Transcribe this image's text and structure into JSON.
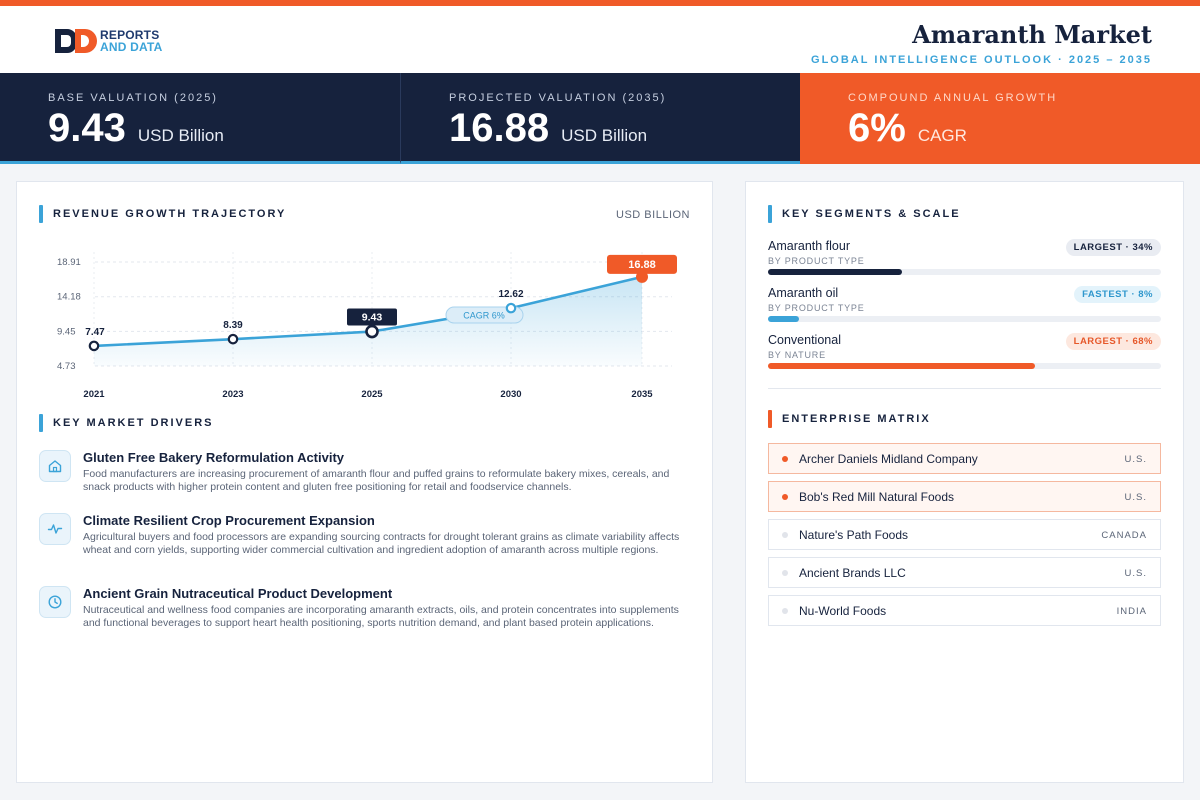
{
  "brand": {
    "logo_text_line1": "REPORTS",
    "logo_text_line2": "AND DATA"
  },
  "header": {
    "title": "Amaranth Market",
    "subtitle": "GLOBAL INTELLIGENCE OUTLOOK  ·  2025 – 2035"
  },
  "kpis": [
    {
      "label": "BASE VALUATION (2025)",
      "value": "9.43",
      "unit": "USD Billion"
    },
    {
      "label": "PROJECTED VALUATION (2035)",
      "value": "16.88",
      "unit": "USD Billion"
    },
    {
      "label": "COMPOUND ANNUAL GROWTH",
      "value": "6%",
      "unit": "CAGR"
    }
  ],
  "colors": {
    "navy": "#16223d",
    "orange": "#f05a28",
    "blue": "#3ba3d8"
  },
  "revenue": {
    "title": "REVENUE GROWTH TRAJECTORY",
    "unit": "USD BILLION",
    "cagr_label": "CAGR 6%"
  },
  "chart_data": {
    "type": "area",
    "x": [
      "2021",
      "2023",
      "2025",
      "2030",
      "2035"
    ],
    "values": [
      7.47,
      8.39,
      9.43,
      12.62,
      16.88
    ],
    "value_labels": [
      "7.47",
      "8.39",
      "9.43",
      "12.62",
      "16.88"
    ],
    "y_ticks": [
      4.73,
      9.45,
      14.18,
      18.91
    ],
    "y_tick_labels": [
      "4.73",
      "9.45",
      "14.18",
      "18.91"
    ],
    "ylim": [
      4.73,
      18.91
    ],
    "grid": true,
    "highlight": {
      "base_index": 2,
      "end_index": 4
    }
  },
  "drivers": {
    "title": "KEY MARKET DRIVERS",
    "items": [
      {
        "icon": "home-icon",
        "title": "Gluten Free Bakery Reformulation Activity",
        "desc": "Food manufacturers are increasing procurement of amaranth flour and puffed grains to reformulate bakery mixes, cereals, and snack products with higher protein content and gluten free positioning for retail and foodservice channels."
      },
      {
        "icon": "pulse-icon",
        "title": "Climate Resilient Crop Procurement Expansion",
        "desc": "Agricultural buyers and food processors are expanding sourcing contracts for drought tolerant grains as climate variability affects wheat and corn yields, supporting wider commercial cultivation and ingredient adoption of amaranth across multiple regions."
      },
      {
        "icon": "clock-icon",
        "title": "Ancient Grain Nutraceutical Product Development",
        "desc": "Nutraceutical and wellness food companies are incorporating amaranth extracts, oils, and protein concentrates into supplements and functional beverages to support heart health positioning, sports nutrition demand, and plant based protein applications."
      }
    ]
  },
  "segments": {
    "title": "KEY SEGMENTS & SCALE",
    "items": [
      {
        "name": "Amaranth flour",
        "sub": "BY PRODUCT TYPE",
        "badge": "LARGEST · 34%",
        "share": 0.34,
        "color": "#16223d"
      },
      {
        "name": "Amaranth oil",
        "sub": "BY PRODUCT TYPE",
        "badge": "FASTEST · 8%",
        "share": 0.08,
        "color": "#3ba3d8"
      },
      {
        "name": "Conventional",
        "sub": "BY NATURE",
        "badge": "LARGEST · 68%",
        "share": 0.68,
        "color": "#f05a28"
      }
    ]
  },
  "matrix": {
    "title": "ENTERPRISE MATRIX",
    "companies": [
      {
        "name": "Archer Daniels Midland Company",
        "loc": "U.S."
      },
      {
        "name": "Bob's Red Mill Natural Foods",
        "loc": "U.S."
      },
      {
        "name": "Nature's Path Foods",
        "loc": "CANADA"
      },
      {
        "name": "Ancient Brands LLC",
        "loc": "U.S."
      },
      {
        "name": "Nu-World Foods",
        "loc": "INDIA"
      }
    ]
  }
}
